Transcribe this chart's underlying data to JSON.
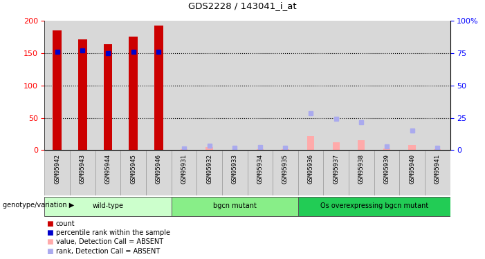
{
  "title": "GDS2228 / 143041_i_at",
  "samples": [
    "GSM95942",
    "GSM95943",
    "GSM95944",
    "GSM95945",
    "GSM95946",
    "GSM95931",
    "GSM95932",
    "GSM95933",
    "GSM95934",
    "GSM95935",
    "GSM95936",
    "GSM95937",
    "GSM95938",
    "GSM95939",
    "GSM95940",
    "GSM95941"
  ],
  "groups": [
    {
      "label": "wild-type",
      "start": 0,
      "end": 5
    },
    {
      "label": "bgcn mutant",
      "start": 5,
      "end": 10
    },
    {
      "label": "Os overexpressing bgcn mutant",
      "start": 10,
      "end": 16
    }
  ],
  "group_colors": [
    "#ccffcc",
    "#88ee88",
    "#22cc55"
  ],
  "count_values": [
    185,
    171,
    164,
    176,
    193,
    null,
    null,
    null,
    null,
    null,
    null,
    null,
    null,
    null,
    null,
    null
  ],
  "rank_values": [
    76,
    77,
    75,
    76,
    76,
    null,
    null,
    null,
    null,
    null,
    null,
    null,
    null,
    null,
    null,
    null
  ],
  "absent_count_values": [
    null,
    null,
    null,
    null,
    null,
    2,
    5,
    1,
    2,
    2,
    22,
    12,
    15,
    3,
    8,
    2
  ],
  "absent_rank_values": [
    null,
    null,
    null,
    null,
    null,
    1.5,
    3.5,
    2,
    2.5,
    2,
    28.5,
    24,
    21.5,
    3,
    15,
    2
  ],
  "ylim_left": [
    0,
    200
  ],
  "ylim_right": [
    0,
    100
  ],
  "count_color": "#cc0000",
  "rank_color": "#0000cc",
  "absent_count_color": "#ffaaaa",
  "absent_rank_color": "#aaaaee",
  "col_bg_color": "#d8d8d8",
  "chart_bg": "#ffffff",
  "legend_labels": [
    "count",
    "percentile rank within the sample",
    "value, Detection Call = ABSENT",
    "rank, Detection Call = ABSENT"
  ],
  "legend_colors": [
    "#cc0000",
    "#0000cc",
    "#ffaaaa",
    "#aaaaee"
  ]
}
